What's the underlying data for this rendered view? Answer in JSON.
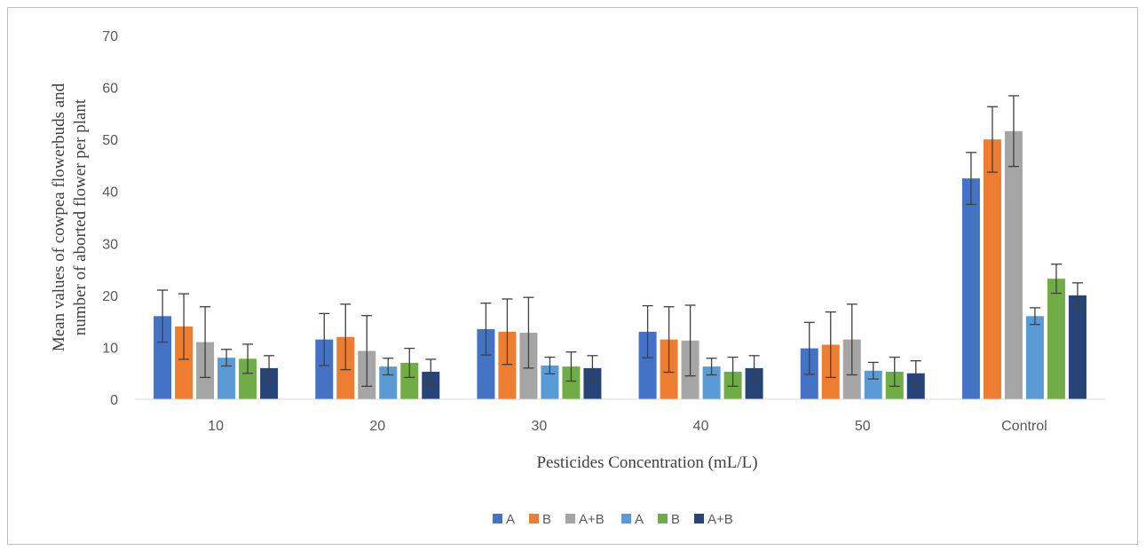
{
  "chart_data": {
    "type": "bar",
    "title": "",
    "xlabel": "Pesticides Concentration (mL/L)",
    "ylabel_lines": [
      "Mean values of cowpea flowerbuds and",
      "number of aborted flower per plant"
    ],
    "categories": [
      "10",
      "20",
      "30",
      "40",
      "50",
      "Control"
    ],
    "ylim": [
      0,
      70
    ],
    "yticks": [
      0,
      10,
      20,
      30,
      40,
      50,
      60,
      70
    ],
    "grid": false,
    "legend_position": "bottom",
    "series": [
      {
        "name": "A",
        "color": "#4472C4",
        "values": [
          16,
          11.5,
          13.5,
          13,
          9.8,
          42.5
        ],
        "errors": [
          5,
          5,
          5,
          5,
          5,
          5
        ]
      },
      {
        "name": "B",
        "color": "#ED7D31",
        "values": [
          14,
          12,
          13,
          11.5,
          10.5,
          50
        ],
        "errors": [
          6.3,
          6.3,
          6.3,
          6.3,
          6.3,
          6.3
        ]
      },
      {
        "name": "A+B",
        "color": "#A5A5A5",
        "values": [
          11,
          9.3,
          12.8,
          11.3,
          11.5,
          51.6
        ],
        "errors": [
          6.8,
          6.8,
          6.8,
          6.8,
          6.8,
          6.8
        ]
      },
      {
        "name": "A",
        "color": "#5B9BD5",
        "values": [
          8,
          6.3,
          6.5,
          6.3,
          5.5,
          16
        ],
        "errors": [
          1.6,
          1.6,
          1.6,
          1.6,
          1.6,
          1.6
        ]
      },
      {
        "name": "B",
        "color": "#70AD47",
        "values": [
          7.8,
          7,
          6.3,
          5.3,
          5.3,
          23.2
        ],
        "errors": [
          2.8,
          2.8,
          2.8,
          2.8,
          2.8,
          2.8
        ]
      },
      {
        "name": "A+B",
        "color": "#264478",
        "values": [
          6,
          5.3,
          6,
          6,
          5,
          20
        ],
        "errors": [
          2.4,
          2.4,
          2.4,
          2.4,
          2.4,
          2.4
        ]
      }
    ]
  }
}
